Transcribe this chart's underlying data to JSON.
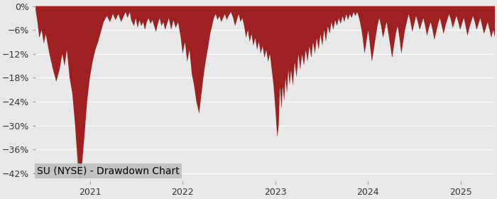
{
  "title": "SU (NYSE) - Drawdown Chart",
  "fill_color": "#9e2020",
  "chart_bg": "#e8e8e8",
  "ylabel_color": "#333333",
  "ylim": [
    -44,
    1
  ],
  "yticks": [
    0,
    -6,
    -12,
    -18,
    -24,
    -30,
    -36,
    -42
  ],
  "ytick_labels": [
    "0%",
    "−6%",
    "−12%",
    "−18%",
    "−24%",
    "−30%",
    "−36%",
    "−42%"
  ],
  "title_fontsize": 10,
  "tick_fontsize": 9,
  "keypoints": [
    [
      0.0,
      -1.0
    ],
    [
      0.004,
      -4.0
    ],
    [
      0.008,
      -8.0
    ],
    [
      0.013,
      -6.0
    ],
    [
      0.018,
      -9.5
    ],
    [
      0.022,
      -7.0
    ],
    [
      0.03,
      -12.0
    ],
    [
      0.038,
      -16.0
    ],
    [
      0.045,
      -19.0
    ],
    [
      0.052,
      -16.0
    ],
    [
      0.058,
      -12.0
    ],
    [
      0.063,
      -15.0
    ],
    [
      0.068,
      -11.0
    ],
    [
      0.074,
      -18.0
    ],
    [
      0.08,
      -22.0
    ],
    [
      0.086,
      -30.0
    ],
    [
      0.092,
      -40.0
    ],
    [
      0.096,
      -43.5
    ],
    [
      0.1,
      -41.0
    ],
    [
      0.106,
      -33.0
    ],
    [
      0.112,
      -24.0
    ],
    [
      0.118,
      -18.0
    ],
    [
      0.124,
      -14.0
    ],
    [
      0.13,
      -11.0
    ],
    [
      0.136,
      -9.0
    ],
    [
      0.142,
      -6.5
    ],
    [
      0.148,
      -4.0
    ],
    [
      0.155,
      -2.5
    ],
    [
      0.162,
      -4.0
    ],
    [
      0.168,
      -2.0
    ],
    [
      0.174,
      -3.5
    ],
    [
      0.18,
      -2.0
    ],
    [
      0.186,
      -4.0
    ],
    [
      0.192,
      -2.5
    ],
    [
      0.196,
      -1.5
    ],
    [
      0.2,
      -3.0
    ],
    [
      0.205,
      -1.5
    ],
    [
      0.208,
      -3.5
    ],
    [
      0.214,
      -5.0
    ],
    [
      0.218,
      -3.0
    ],
    [
      0.222,
      -5.5
    ],
    [
      0.226,
      -3.5
    ],
    [
      0.23,
      -5.0
    ],
    [
      0.234,
      -4.0
    ],
    [
      0.238,
      -6.0
    ],
    [
      0.242,
      -4.0
    ],
    [
      0.246,
      -3.0
    ],
    [
      0.25,
      -4.5
    ],
    [
      0.254,
      -3.5
    ],
    [
      0.258,
      -5.0
    ],
    [
      0.262,
      -6.5
    ],
    [
      0.266,
      -4.5
    ],
    [
      0.27,
      -3.0
    ],
    [
      0.274,
      -5.0
    ],
    [
      0.278,
      -4.0
    ],
    [
      0.282,
      -6.0
    ],
    [
      0.286,
      -4.5
    ],
    [
      0.29,
      -3.0
    ],
    [
      0.295,
      -6.0
    ],
    [
      0.3,
      -3.5
    ],
    [
      0.305,
      -5.5
    ],
    [
      0.31,
      -4.0
    ],
    [
      0.316,
      -8.0
    ],
    [
      0.32,
      -12.0
    ],
    [
      0.325,
      -9.0
    ],
    [
      0.33,
      -14.0
    ],
    [
      0.335,
      -11.0
    ],
    [
      0.34,
      -17.0
    ],
    [
      0.345,
      -20.0
    ],
    [
      0.35,
      -24.0
    ],
    [
      0.356,
      -27.0
    ],
    [
      0.36,
      -23.0
    ],
    [
      0.365,
      -18.0
    ],
    [
      0.37,
      -14.0
    ],
    [
      0.376,
      -10.0
    ],
    [
      0.38,
      -7.0
    ],
    [
      0.384,
      -5.0
    ],
    [
      0.388,
      -3.0
    ],
    [
      0.392,
      -2.0
    ],
    [
      0.396,
      -3.5
    ],
    [
      0.4,
      -2.5
    ],
    [
      0.404,
      -4.0
    ],
    [
      0.408,
      -3.0
    ],
    [
      0.412,
      -2.0
    ],
    [
      0.416,
      -3.5
    ],
    [
      0.42,
      -2.5
    ],
    [
      0.425,
      -1.5
    ],
    [
      0.43,
      -3.0
    ],
    [
      0.434,
      -5.0
    ],
    [
      0.438,
      -3.5
    ],
    [
      0.442,
      -2.0
    ],
    [
      0.446,
      -4.0
    ],
    [
      0.45,
      -3.0
    ],
    [
      0.454,
      -5.0
    ],
    [
      0.458,
      -8.0
    ],
    [
      0.462,
      -6.0
    ],
    [
      0.466,
      -9.0
    ],
    [
      0.47,
      -7.0
    ],
    [
      0.474,
      -10.0
    ],
    [
      0.478,
      -8.0
    ],
    [
      0.482,
      -11.0
    ],
    [
      0.486,
      -9.0
    ],
    [
      0.49,
      -12.0
    ],
    [
      0.494,
      -10.0
    ],
    [
      0.498,
      -13.0
    ],
    [
      0.502,
      -11.0
    ],
    [
      0.506,
      -14.0
    ],
    [
      0.51,
      -12.0
    ],
    [
      0.514,
      -16.0
    ],
    [
      0.518,
      -20.0
    ],
    [
      0.522,
      -26.0
    ],
    [
      0.526,
      -33.0
    ],
    [
      0.529,
      -30.0
    ],
    [
      0.532,
      -20.0
    ],
    [
      0.535,
      -26.0
    ],
    [
      0.538,
      -20.0
    ],
    [
      0.541,
      -24.0
    ],
    [
      0.544,
      -18.0
    ],
    [
      0.547,
      -22.0
    ],
    [
      0.55,
      -16.0
    ],
    [
      0.553,
      -20.0
    ],
    [
      0.556,
      -16.0
    ],
    [
      0.56,
      -20.0
    ],
    [
      0.564,
      -14.0
    ],
    [
      0.568,
      -18.0
    ],
    [
      0.572,
      -12.0
    ],
    [
      0.576,
      -16.0
    ],
    [
      0.58,
      -12.0
    ],
    [
      0.584,
      -15.0
    ],
    [
      0.588,
      -11.0
    ],
    [
      0.592,
      -14.0
    ],
    [
      0.596,
      -10.0
    ],
    [
      0.6,
      -13.0
    ],
    [
      0.604,
      -9.0
    ],
    [
      0.608,
      -12.0
    ],
    [
      0.612,
      -8.0
    ],
    [
      0.616,
      -11.0
    ],
    [
      0.62,
      -7.0
    ],
    [
      0.624,
      -10.0
    ],
    [
      0.628,
      -6.0
    ],
    [
      0.632,
      -9.0
    ],
    [
      0.636,
      -5.0
    ],
    [
      0.64,
      -7.0
    ],
    [
      0.644,
      -4.0
    ],
    [
      0.648,
      -6.0
    ],
    [
      0.652,
      -3.5
    ],
    [
      0.656,
      -5.0
    ],
    [
      0.66,
      -3.0
    ],
    [
      0.664,
      -4.5
    ],
    [
      0.668,
      -2.5
    ],
    [
      0.672,
      -4.0
    ],
    [
      0.676,
      -2.0
    ],
    [
      0.68,
      -3.5
    ],
    [
      0.684,
      -2.0
    ],
    [
      0.688,
      -3.0
    ],
    [
      0.692,
      -1.5
    ],
    [
      0.696,
      -2.5
    ],
    [
      0.7,
      -1.5
    ],
    [
      0.704,
      -3.0
    ],
    [
      0.708,
      -5.0
    ],
    [
      0.712,
      -8.0
    ],
    [
      0.716,
      -12.0
    ],
    [
      0.72,
      -9.0
    ],
    [
      0.724,
      -6.0
    ],
    [
      0.728,
      -10.0
    ],
    [
      0.732,
      -14.0
    ],
    [
      0.736,
      -11.0
    ],
    [
      0.74,
      -8.0
    ],
    [
      0.744,
      -5.0
    ],
    [
      0.748,
      -3.0
    ],
    [
      0.752,
      -5.0
    ],
    [
      0.756,
      -8.0
    ],
    [
      0.76,
      -6.0
    ],
    [
      0.764,
      -4.0
    ],
    [
      0.768,
      -7.0
    ],
    [
      0.772,
      -10.0
    ],
    [
      0.776,
      -13.0
    ],
    [
      0.78,
      -10.0
    ],
    [
      0.784,
      -7.0
    ],
    [
      0.788,
      -5.0
    ],
    [
      0.792,
      -8.0
    ],
    [
      0.796,
      -12.0
    ],
    [
      0.8,
      -9.0
    ],
    [
      0.804,
      -6.0
    ],
    [
      0.808,
      -4.0
    ],
    [
      0.812,
      -2.0
    ],
    [
      0.816,
      -4.0
    ],
    [
      0.82,
      -6.5
    ],
    [
      0.824,
      -4.5
    ],
    [
      0.828,
      -2.5
    ],
    [
      0.832,
      -4.0
    ],
    [
      0.836,
      -6.0
    ],
    [
      0.84,
      -4.5
    ],
    [
      0.844,
      -3.0
    ],
    [
      0.848,
      -5.0
    ],
    [
      0.852,
      -7.5
    ],
    [
      0.856,
      -5.5
    ],
    [
      0.86,
      -4.0
    ],
    [
      0.864,
      -6.0
    ],
    [
      0.868,
      -8.5
    ],
    [
      0.872,
      -6.5
    ],
    [
      0.876,
      -4.5
    ],
    [
      0.88,
      -3.0
    ],
    [
      0.884,
      -5.0
    ],
    [
      0.888,
      -7.0
    ],
    [
      0.892,
      -5.0
    ],
    [
      0.896,
      -3.5
    ],
    [
      0.9,
      -2.0
    ],
    [
      0.904,
      -3.5
    ],
    [
      0.908,
      -5.5
    ],
    [
      0.912,
      -4.0
    ],
    [
      0.916,
      -2.5
    ],
    [
      0.92,
      -4.0
    ],
    [
      0.924,
      -6.0
    ],
    [
      0.928,
      -4.5
    ],
    [
      0.932,
      -3.0
    ],
    [
      0.936,
      -5.0
    ],
    [
      0.94,
      -7.5
    ],
    [
      0.944,
      -5.5
    ],
    [
      0.948,
      -4.0
    ],
    [
      0.952,
      -2.5
    ],
    [
      0.956,
      -4.0
    ],
    [
      0.96,
      -6.0
    ],
    [
      0.964,
      -4.5
    ],
    [
      0.968,
      -3.0
    ],
    [
      0.972,
      -5.0
    ],
    [
      0.976,
      -7.0
    ],
    [
      0.98,
      -5.5
    ],
    [
      0.984,
      -4.0
    ],
    [
      0.988,
      -6.0
    ],
    [
      0.992,
      -8.0
    ],
    [
      0.996,
      -6.0
    ],
    [
      1.0,
      -8.0
    ]
  ]
}
